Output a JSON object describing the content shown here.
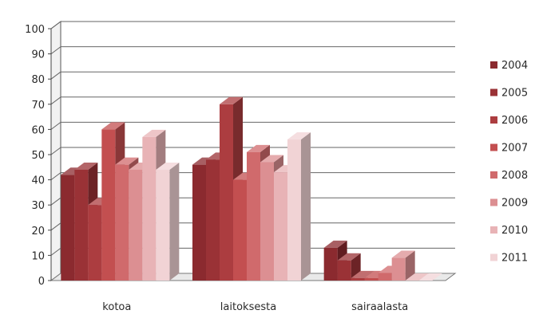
{
  "chart_data": {
    "type": "bar",
    "style": "3d-clustered-column",
    "categories": [
      "kotoa",
      "laitoksesta",
      "sairaalasta"
    ],
    "series": [
      {
        "name": "2004",
        "values": [
          42,
          46,
          13
        ],
        "color": "#8b2a2f"
      },
      {
        "name": "2005",
        "values": [
          44,
          48,
          8
        ],
        "color": "#9a3236"
      },
      {
        "name": "2006",
        "values": [
          30,
          70,
          1
        ],
        "color": "#ac3d40"
      },
      {
        "name": "2007",
        "values": [
          60,
          40,
          1
        ],
        "color": "#c34f50"
      },
      {
        "name": "2008",
        "values": [
          46,
          51,
          3
        ],
        "color": "#d06a6c"
      },
      {
        "name": "2009",
        "values": [
          44,
          47,
          9
        ],
        "color": "#dc8f92"
      },
      {
        "name": "2010",
        "values": [
          57,
          43,
          0
        ],
        "color": "#e8b3b6"
      },
      {
        "name": "2011",
        "values": [
          44,
          56,
          0
        ],
        "color": "#f1d3d5"
      }
    ],
    "ylim": [
      0,
      100
    ],
    "yticks": [
      "0",
      "10",
      "20",
      "30",
      "40",
      "50",
      "60",
      "70",
      "80",
      "90",
      "100"
    ],
    "title": "",
    "xlabel": "",
    "ylabel": "",
    "grid": true,
    "legend_position": "right"
  }
}
